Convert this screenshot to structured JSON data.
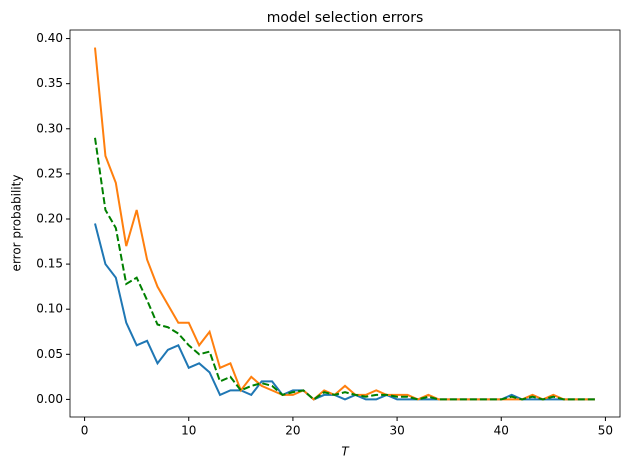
{
  "chart_data": {
    "type": "line",
    "title": "model selection errors",
    "xlabel": "T",
    "ylabel": "error probability",
    "x": [
      1,
      2,
      3,
      4,
      5,
      6,
      7,
      8,
      9,
      10,
      11,
      12,
      13,
      14,
      15,
      16,
      17,
      18,
      19,
      20,
      21,
      22,
      23,
      24,
      25,
      26,
      27,
      28,
      29,
      30,
      31,
      32,
      33,
      34,
      35,
      36,
      37,
      38,
      39,
      40,
      41,
      42,
      43,
      44,
      45,
      46,
      47,
      48,
      49
    ],
    "series": [
      {
        "color": "#1f77b4",
        "dash": "solid",
        "values": [
          0.195,
          0.15,
          0.135,
          0.085,
          0.06,
          0.065,
          0.04,
          0.055,
          0.06,
          0.035,
          0.04,
          0.03,
          0.005,
          0.01,
          0.01,
          0.005,
          0.02,
          0.02,
          0.005,
          0.01,
          0.01,
          0,
          0.005,
          0.005,
          0,
          0.005,
          0,
          0,
          0.005,
          0,
          0,
          0,
          0,
          0,
          0,
          0,
          0,
          0,
          0,
          0,
          0.005,
          0,
          0,
          0,
          0,
          0,
          0,
          0,
          0
        ]
      },
      {
        "color": "#ff7f0e",
        "dash": "solid",
        "values": [
          0.39,
          0.27,
          0.24,
          0.17,
          0.21,
          0.155,
          0.125,
          0.105,
          0.085,
          0.085,
          0.06,
          0.075,
          0.035,
          0.04,
          0.01,
          0.025,
          0.015,
          0.01,
          0.005,
          0.005,
          0.01,
          0,
          0.01,
          0.005,
          0.015,
          0.005,
          0.005,
          0.01,
          0.005,
          0.005,
          0.005,
          0,
          0.005,
          0,
          0,
          0,
          0,
          0,
          0,
          0,
          0,
          0,
          0.005,
          0,
          0.005,
          0,
          0,
          0,
          0
        ]
      },
      {
        "color": "#008000",
        "dash": "dashed",
        "values": [
          0.29,
          0.21,
          0.19,
          0.128,
          0.135,
          0.11,
          0.083,
          0.08,
          0.073,
          0.06,
          0.05,
          0.053,
          0.02,
          0.025,
          0.01,
          0.015,
          0.018,
          0.015,
          0.005,
          0.008,
          0.01,
          0,
          0.008,
          0.005,
          0.008,
          0.005,
          0.003,
          0.005,
          0.005,
          0.003,
          0.003,
          0,
          0.003,
          0,
          0,
          0,
          0,
          0,
          0,
          0,
          0.003,
          0,
          0.003,
          0,
          0.003,
          0,
          0,
          0,
          0
        ]
      }
    ],
    "xlim": [
      -1.4,
      51.4
    ],
    "xticks": [
      0,
      10,
      20,
      30,
      40,
      50
    ],
    "ylim": [
      -0.0195,
      0.4095
    ],
    "yticks": [
      {
        "value": 0,
        "label": "0.00"
      },
      0.05,
      {
        "value": 0.1,
        "label": "0.10"
      },
      0.15,
      {
        "value": 0.2,
        "label": "0.20"
      },
      0.25,
      {
        "value": 0.3,
        "label": "0.30"
      },
      0.35,
      {
        "value": 0.4,
        "label": "0.40"
      }
    ]
  }
}
